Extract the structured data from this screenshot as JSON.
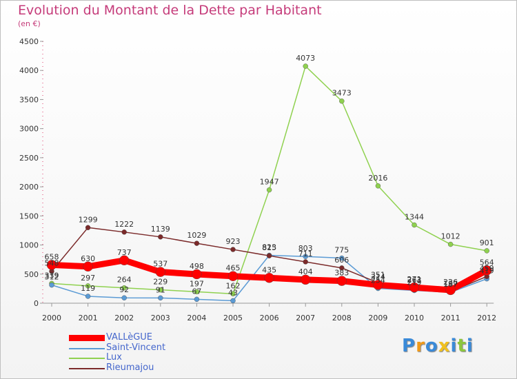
{
  "chart_data": {
    "type": "line",
    "title": "Evolution du Montant de la Dette par Habitant",
    "subtitle": "(en €)",
    "categories": [
      "2000",
      "2001",
      "2002",
      "2003",
      "2004",
      "2005",
      "2006",
      "2007",
      "2008",
      "2009",
      "2010",
      "2011",
      "2012"
    ],
    "ylim": [
      0,
      4500
    ],
    "yticks": [
      0,
      500,
      1000,
      1500,
      2000,
      2500,
      3000,
      3500,
      4000,
      4500
    ],
    "grid": false,
    "legend_position": "bottom-left",
    "series": [
      {
        "name": "VALLèGUE",
        "color": "#ff0000",
        "values": [
          658,
          630,
          737,
          537,
          498,
          465,
          435,
          404,
          383,
          314,
          271,
          226,
          564
        ],
        "labels": [
          "658",
          "630",
          "737",
          "537",
          "498",
          "465",
          "435",
          "404",
          "383",
          "314",
          "271",
          "226",
          "564"
        ]
      },
      {
        "name": "Saint-Vincent",
        "color": "#5b9bd5",
        "values": [
          312,
          119,
          92,
          91,
          67,
          43,
          823,
          803,
          775,
          254,
          219,
          187,
          419
        ],
        "labels": [
          "312",
          "119",
          "92",
          "91",
          "67",
          "43",
          "823",
          "803",
          "775",
          "254",
          "219",
          "187",
          "419"
        ]
      },
      {
        "name": "Lux",
        "color": "#8fd14f",
        "values": [
          339,
          297,
          264,
          229,
          197,
          162,
          1947,
          4073,
          3473,
          2016,
          1344,
          1012,
          901
        ],
        "labels": [
          "339",
          "297",
          "264",
          "229",
          "197",
          "162",
          "1947",
          "4073",
          "3473",
          "2016",
          "1344",
          "1012",
          "901"
        ]
      },
      {
        "name": "Rieumajou",
        "color": "#7b2a2a",
        "values": [
          548,
          1299,
          1222,
          1139,
          1029,
          923,
          815,
          711,
          606,
          351,
          263,
          197,
          459
        ],
        "labels": [
          "548",
          "1299",
          "1222",
          "1139",
          "1029",
          "923",
          "815",
          "711",
          "606",
          "351",
          "263",
          "197",
          "459"
        ]
      }
    ]
  },
  "logo": {
    "letters": [
      "P",
      "r",
      "o",
      "x",
      "i",
      "t",
      "i"
    ],
    "colors": [
      "#3a8ad8",
      "#f09a1a",
      "#3a8ad8",
      "#f0c020",
      "#3a8ad8",
      "#8cc63e",
      "#3a8ad8"
    ]
  }
}
